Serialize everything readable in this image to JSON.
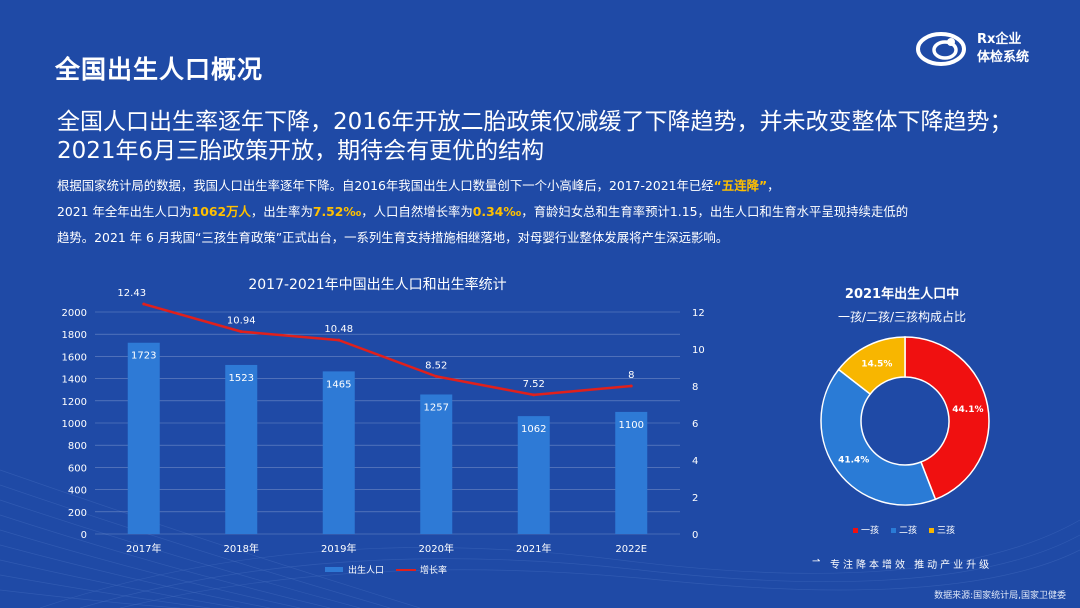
{
  "page": {
    "title": "全国出生人口概况",
    "logo_line1": "Rx企业",
    "logo_line2": "体检系统",
    "headline_line1": "全国人口出生率逐年下降，2016年开放二胎政策仅减缓了下降趋势，并未改变整体下降趋势；",
    "headline_line2": "2021年6月三胎政策开放，期待会有更优的结构",
    "body": {
      "p1": "根据国家统计局的数据，我国人口出生率逐年下降。自2016年我国出生人口数量创下一个小高峰后，2017-2021年已经",
      "p1_hl": "“五连降”",
      "p1_end": "，",
      "p2_a": "2021 年全年出生人口为",
      "p2_hl1": "1062万人",
      "p2_b": "，出生率为",
      "p2_hl2": "7.52‰",
      "p2_c": "，人口自然增长率为",
      "p2_hl3": "0.34‰",
      "p2_d": "，育龄妇女总和生育率预计1.15，出生人口和生育水平呈现持续走低的",
      "p3": "趋势。2021 年 6 月我国“三孩生育政策”正式出台，一系列生育支持措施相继落地，对母婴行业整体发展将产生深远影响。"
    },
    "slogan": "专注降本增效 推动产业升级",
    "source": "数据来源:国家统计局,国家卫健委"
  },
  "colors": {
    "background": "#1f4aa6",
    "bar": "#2e7ad6",
    "line": "#e0201c",
    "pie_one_child": "#f01010",
    "pie_two_child": "#2a7bd6",
    "pie_three_child": "#f8b600",
    "highlight": "#ffc000"
  },
  "chart_data": [
    {
      "type": "bar",
      "title": "2017-2021年中国出生人口和出生率统计",
      "categories": [
        "2017年",
        "2018年",
        "2019年",
        "2020年",
        "2021年",
        "2022E"
      ],
      "series": [
        {
          "name": "出生人口",
          "kind": "bar",
          "axis": "left",
          "values": [
            1723,
            1523,
            1465,
            1257,
            1062,
            1100
          ]
        },
        {
          "name": "增长率",
          "kind": "line",
          "axis": "right",
          "values": [
            12.43,
            10.94,
            10.48,
            8.52,
            7.52,
            8
          ]
        }
      ],
      "y_left": {
        "min": 0,
        "max": 2000,
        "ticks": [
          0,
          200,
          400,
          600,
          800,
          1000,
          1200,
          1400,
          1600,
          1800,
          2000
        ]
      },
      "y_right": {
        "min": 0,
        "max": 12,
        "ticks": [
          0,
          2,
          4,
          6,
          8,
          10,
          12
        ]
      },
      "legend_position": "bottom",
      "grid": true
    },
    {
      "type": "pie",
      "title": "2021年出生人口中",
      "subtitle": "一孩/二孩/三孩构成占比",
      "categories": [
        "一孩",
        "二孩",
        "三孩"
      ],
      "values": [
        44.1,
        41.4,
        14.5
      ],
      "labels": [
        "44.1%",
        "41.4%",
        "14.5%"
      ],
      "donut": true,
      "legend_position": "bottom"
    }
  ]
}
